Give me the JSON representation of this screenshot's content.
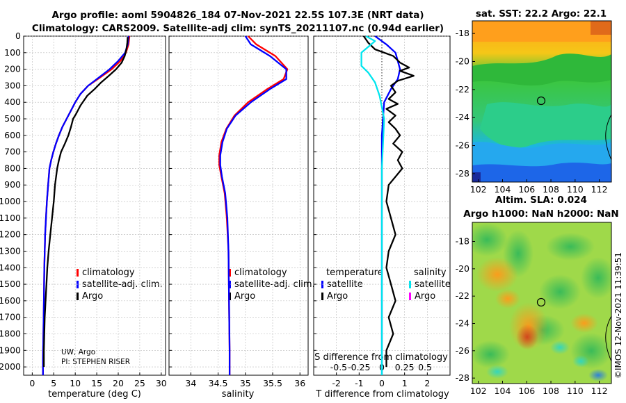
{
  "header": {
    "title_line1": "Argo profile: aoml 5904826_184 07-Nov-2021 22.5S 107.3E (NRT data)",
    "title_line2": "Climatology: CARS2009. Satellite-adj clim: synTS_20211107.nc (0.94d earlier)"
  },
  "credit": "©IMOS 12-Nov-2021 11:39:51",
  "colors": {
    "climatology": "#ff0000",
    "satellite": "#0000ff",
    "argo": "#000000",
    "sal_satellite": "#00e5ee",
    "sal_argo": "#ff00ff",
    "grid": "#b8b8b8"
  },
  "chart_data": [
    {
      "type": "line",
      "name": "temperature",
      "xlabel": "temperature (deg C)",
      "xlim": [
        -2,
        31
      ],
      "ylim": [
        2050,
        0
      ],
      "xticks": [
        0,
        5,
        10,
        15,
        20,
        25,
        30
      ],
      "yticks": [
        0,
        100,
        200,
        300,
        400,
        500,
        600,
        700,
        800,
        900,
        1000,
        1100,
        1200,
        1300,
        1400,
        1500,
        1600,
        1700,
        1800,
        1900,
        2000
      ],
      "legend": [
        "climatology",
        "satellite-adj. clim.",
        "Argo"
      ],
      "note_lines": [
        "UW, Argo",
        "PI: STEPHEN RISER"
      ],
      "series": [
        {
          "name": "climatology",
          "color": "#ff0000",
          "x": [
            22.6,
            22.4,
            21.8,
            20.5,
            18.5,
            15.8,
            13.0,
            11.2,
            10.0,
            9.0,
            8.0,
            7.0,
            6.2,
            5.5,
            4.9,
            4.4,
            4.0,
            3.7,
            3.4,
            3.2,
            3.0,
            2.9,
            2.8,
            2.7,
            2.6,
            2.5,
            2.5
          ],
          "y": [
            0,
            50,
            100,
            150,
            200,
            250,
            300,
            350,
            400,
            450,
            500,
            550,
            600,
            650,
            700,
            750,
            800,
            900,
            1000,
            1100,
            1200,
            1300,
            1400,
            1600,
            1800,
            1950,
            2050
          ]
        },
        {
          "name": "satellite-adj. clim.",
          "color": "#0000ff",
          "x": [
            22.4,
            22.2,
            21.6,
            20.0,
            18.0,
            15.5,
            13.0,
            11.2,
            10.0,
            9.0,
            8.0,
            7.0,
            6.2,
            5.5,
            4.9,
            4.4,
            4.0,
            3.7,
            3.4,
            3.2,
            3.0,
            2.9,
            2.8,
            2.7,
            2.6,
            2.5,
            2.5
          ],
          "y": [
            0,
            50,
            100,
            150,
            200,
            250,
            300,
            350,
            400,
            450,
            500,
            550,
            600,
            650,
            700,
            750,
            800,
            900,
            1000,
            1100,
            1200,
            1300,
            1400,
            1600,
            1800,
            1950,
            2050
          ]
        },
        {
          "name": "Argo",
          "color": "#000000",
          "x": [
            22.2,
            22.1,
            21.9,
            21.5,
            20.8,
            19.5,
            17.8,
            16.0,
            14.5,
            12.8,
            11.2,
            10.2,
            9.5,
            9.0,
            8.4,
            7.6,
            6.7,
            6.2,
            5.8,
            5.3,
            5.0,
            4.6,
            4.2,
            3.8,
            3.5,
            3.3,
            3.1,
            2.9,
            2.8,
            2.7,
            2.7
          ],
          "y": [
            5,
            40,
            80,
            120,
            160,
            200,
            240,
            280,
            320,
            360,
            420,
            470,
            500,
            550,
            600,
            650,
            700,
            750,
            800,
            900,
            1000,
            1100,
            1200,
            1300,
            1400,
            1500,
            1600,
            1700,
            1800,
            1900,
            2000
          ]
        }
      ]
    },
    {
      "type": "line",
      "name": "salinity",
      "xlabel": "salinity",
      "xlim": [
        33.6,
        36.15
      ],
      "ylim": [
        2050,
        0
      ],
      "xticks": [
        34,
        34.5,
        35,
        35.5,
        36
      ],
      "legend": [
        "climatology",
        "satellite-adj. clim.",
        "Argo"
      ],
      "series": [
        {
          "name": "climatology",
          "color": "#ff0000",
          "x": [
            35.05,
            35.2,
            35.55,
            35.77,
            35.7,
            35.4,
            35.05,
            34.8,
            34.65,
            34.56,
            34.52,
            34.52,
            34.56,
            34.62,
            34.66,
            34.69,
            34.7,
            34.71,
            34.71
          ],
          "y": [
            0,
            50,
            120,
            200,
            260,
            320,
            400,
            480,
            560,
            640,
            720,
            780,
            850,
            950,
            1100,
            1300,
            1600,
            1900,
            2050
          ]
        },
        {
          "name": "satellite-adj. clim.",
          "color": "#0000ff",
          "x": [
            35.0,
            35.1,
            35.45,
            35.75,
            35.75,
            35.45,
            35.1,
            34.82,
            34.66,
            34.58,
            34.54,
            34.54,
            34.57,
            34.63,
            34.67,
            34.69,
            34.7,
            34.71,
            34.71
          ],
          "y": [
            0,
            50,
            120,
            200,
            260,
            320,
            400,
            480,
            560,
            640,
            720,
            780,
            850,
            950,
            1100,
            1300,
            1600,
            1900,
            2050
          ]
        }
      ]
    },
    {
      "type": "line",
      "name": "differences",
      "xlabel": "T difference from climatology",
      "xlim": [
        -3.0,
        3.0
      ],
      "ylim": [
        2050,
        0
      ],
      "xticks": [
        -2,
        -1,
        0,
        1,
        2
      ],
      "secondary_xlabel": "S difference from climatology",
      "secondary_ticks": [
        "-0.5",
        "-0.25",
        "0",
        "0.25",
        "0.5"
      ],
      "legend_titles": [
        "temperature",
        "salinity"
      ],
      "legend": [
        "satellite",
        "Argo",
        "satellite",
        "Argo"
      ],
      "series": [
        {
          "name": "T satellite",
          "color": "#0000ff",
          "x": [
            -0.3,
            0.2,
            0.6,
            0.8,
            0.7,
            0.4,
            0.1,
            0.0,
            0.0,
            0.0
          ],
          "y": [
            0,
            50,
            100,
            200,
            260,
            320,
            400,
            600,
            1000,
            2050
          ]
        },
        {
          "name": "T Argo",
          "color": "#000000",
          "x": [
            -0.8,
            -0.6,
            -0.3,
            0.5,
            0.8,
            1.2,
            0.8,
            1.4,
            0.7,
            0.4,
            0.6,
            0.3,
            0.7,
            0.2,
            0.6,
            0.3,
            0.6,
            0.8,
            0.5,
            0.9,
            0.7,
            0.9,
            0.6,
            0.3,
            0.2,
            0.4,
            0.6,
            0.3,
            0.2,
            0.4,
            0.6,
            0.3,
            0.5,
            0.2,
            0.2
          ],
          "y": [
            0,
            40,
            80,
            120,
            160,
            190,
            210,
            240,
            270,
            300,
            340,
            380,
            410,
            440,
            480,
            520,
            560,
            600,
            650,
            700,
            750,
            800,
            850,
            900,
            1000,
            1100,
            1200,
            1300,
            1400,
            1500,
            1600,
            1700,
            1800,
            1900,
            2000
          ]
        },
        {
          "name": "S satellite",
          "color": "#00e5ee",
          "x": [
            -0.7,
            -0.3,
            -0.9,
            -0.9,
            -0.6,
            -0.3,
            -0.1,
            0.1,
            0.0,
            0.0,
            0.0
          ],
          "y": [
            0,
            30,
            100,
            180,
            220,
            280,
            360,
            500,
            800,
            1400,
            2050
          ]
        }
      ]
    }
  ],
  "maps": [
    {
      "name": "sst_map",
      "title": "sat. SST: 22.2 Argo: 22.1",
      "xticks": [
        102,
        104,
        106,
        108,
        110,
        112
      ],
      "yticks": [
        -18,
        -20,
        -22,
        -24,
        -26,
        -28
      ]
    },
    {
      "name": "sla_map",
      "title_line1": "Altim. SLA: 0.024",
      "title_line2": "Argo h1000: NaN h2000: NaN",
      "xticks": [
        102,
        104,
        106,
        108,
        110,
        112
      ],
      "yticks": [
        -18,
        -20,
        -22,
        -24,
        -26,
        -28
      ]
    }
  ]
}
